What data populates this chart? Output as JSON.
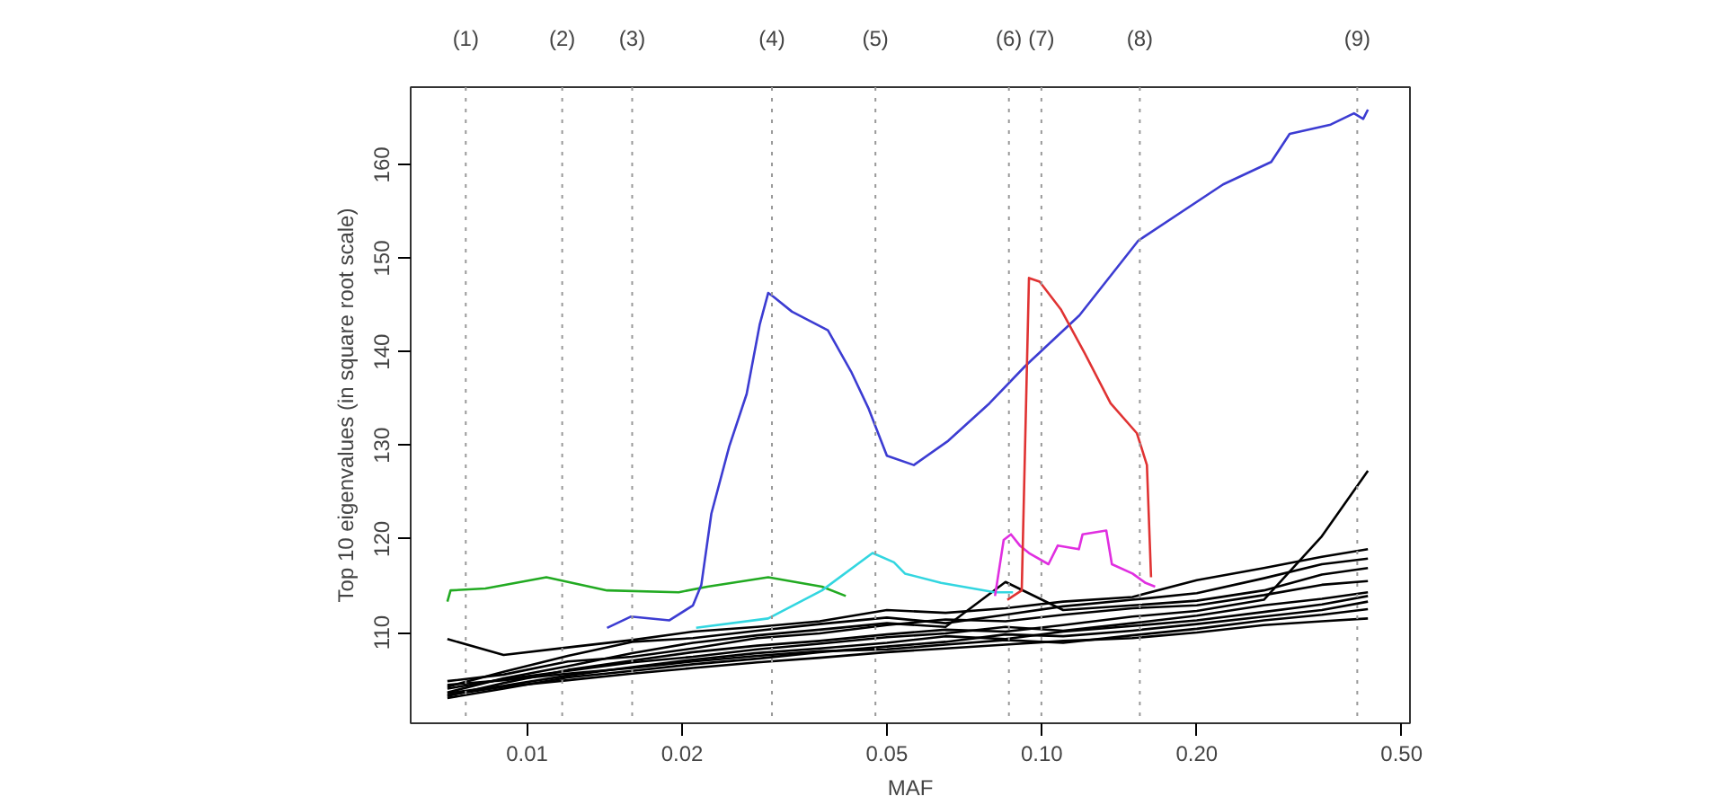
{
  "chart_data": {
    "type": "line",
    "xlabel": "MAF",
    "ylabel": "Top 10 eigenvalues (in square root scale)",
    "log": "x",
    "grid": false,
    "marker": "none",
    "line_style": "solid",
    "xlim": [
      0.00594,
      0.519
    ],
    "ylim": [
      100.3,
      168.3
    ],
    "xticks": [
      {
        "value": 0.01,
        "label": "0.01"
      },
      {
        "value": 0.02,
        "label": "0.02"
      },
      {
        "value": 0.05,
        "label": "0.05"
      },
      {
        "value": 0.1,
        "label": "0.10"
      },
      {
        "value": 0.2,
        "label": "0.20"
      },
      {
        "value": 0.5,
        "label": "0.50"
      }
    ],
    "yticks": [
      110,
      120,
      130,
      140,
      150,
      160
    ],
    "x": [
      0.007,
      0.009,
      0.012,
      0.016,
      0.021,
      0.028,
      0.037,
      0.05,
      0.065,
      0.085,
      0.11,
      0.15,
      0.2,
      0.27,
      0.35,
      0.43
    ],
    "series": [
      {
        "color": "#000000",
        "values": [
          109.3,
          107.6,
          108.4,
          109.2,
          110.1,
          110.6,
          111.2,
          112.4,
          112.1,
          112.6,
          113.3,
          113.8,
          115.6,
          116.9,
          118.1,
          118.9
        ]
      },
      {
        "color": "#000000",
        "values": [
          104.2,
          105.8,
          107.5,
          109.0,
          109.4,
          110.2,
          110.9,
          111.6,
          111.0,
          111.9,
          112.8,
          113.5,
          114.2,
          115.8,
          117.3,
          117.9
        ]
      },
      {
        "color": "#000000",
        "values": [
          103.6,
          105.1,
          106.4,
          107.8,
          108.9,
          109.7,
          110.3,
          111.0,
          110.6,
          115.4,
          112.4,
          112.9,
          113.4,
          114.5,
          116.2,
          116.9
        ]
      },
      {
        "color": "#000000",
        "values": [
          104.8,
          105.5,
          106.9,
          107.4,
          108.3,
          109.4,
          109.9,
          110.8,
          111.4,
          111.2,
          111.9,
          112.6,
          112.9,
          114.0,
          115.1,
          115.5
        ]
      },
      {
        "color": "#000000",
        "values": [
          103.2,
          104.6,
          106.0,
          107.0,
          107.9,
          108.6,
          109.1,
          109.8,
          110.3,
          110.1,
          110.8,
          111.7,
          112.3,
          113.5,
          120.3,
          127.3
        ]
      },
      {
        "color": "#000000",
        "values": [
          104.0,
          105.0,
          105.9,
          106.8,
          107.4,
          108.2,
          108.8,
          109.5,
          109.9,
          110.6,
          110.2,
          111.0,
          111.8,
          112.9,
          113.6,
          114.3
        ]
      },
      {
        "color": "#000000",
        "values": [
          103.5,
          104.3,
          105.4,
          106.3,
          107.1,
          107.8,
          108.3,
          108.9,
          109.6,
          109.3,
          110.1,
          110.7,
          111.3,
          112.2,
          113.0,
          113.9
        ]
      },
      {
        "color": "#000000",
        "values": [
          103.0,
          104.0,
          105.2,
          105.9,
          106.6,
          107.2,
          107.9,
          108.5,
          109.0,
          109.8,
          109.6,
          110.2,
          110.9,
          111.7,
          112.4,
          113.3
        ]
      },
      {
        "color": "#000000",
        "values": [
          104.4,
          104.9,
          105.6,
          106.2,
          106.9,
          107.5,
          108.0,
          108.2,
          108.7,
          109.2,
          108.9,
          109.7,
          110.4,
          111.3,
          111.9,
          112.5
        ]
      },
      {
        "color": "#000000",
        "values": [
          103.3,
          104.2,
          104.9,
          105.6,
          106.2,
          106.8,
          107.3,
          107.9,
          108.3,
          108.7,
          109.1,
          109.4,
          110.0,
          110.8,
          111.2,
          111.5
        ]
      },
      {
        "color": "#22aa22",
        "x": [
          0.007,
          0.0071,
          0.0083,
          0.0109,
          0.0143,
          0.0197,
          0.0224,
          0.0294,
          0.0374,
          0.0416
        ],
        "values": [
          113.3,
          114.5,
          114.7,
          115.9,
          114.5,
          114.3,
          114.9,
          115.9,
          114.9,
          113.9
        ]
      },
      {
        "color": "#33d6e0",
        "x": [
          0.0213,
          0.0294,
          0.0374,
          0.0469,
          0.0516,
          0.0542,
          0.0637,
          0.081,
          0.0879
        ],
        "values": [
          110.5,
          111.5,
          114.5,
          118.5,
          117.5,
          116.3,
          115.3,
          114.3,
          114.3
        ]
      },
      {
        "color": "#3c3cd2",
        "x": [
          0.0143,
          0.0159,
          0.0189,
          0.021,
          0.0218,
          0.0228,
          0.0247,
          0.0267,
          0.0283,
          0.0294,
          0.0301,
          0.0327,
          0.0384,
          0.0426,
          0.0461,
          0.05,
          0.0564,
          0.0658,
          0.0791,
          0.0929,
          0.1183,
          0.154,
          0.225,
          0.279,
          0.303,
          0.364,
          0.404,
          0.421,
          0.43
        ],
        "values": [
          110.5,
          111.7,
          111.3,
          112.9,
          115.1,
          122.7,
          129.9,
          135.5,
          142.9,
          146.3,
          145.9,
          144.3,
          142.3,
          137.9,
          133.9,
          128.9,
          127.9,
          130.5,
          134.5,
          138.5,
          143.9,
          151.9,
          157.9,
          160.3,
          163.3,
          164.3,
          165.5,
          164.9,
          165.9
        ]
      },
      {
        "color": "#e02fe0",
        "x": [
          0.0811,
          0.0843,
          0.0871,
          0.0906,
          0.0944,
          0.103,
          0.1074,
          0.118,
          0.12,
          0.1334,
          0.1368,
          0.15,
          0.159,
          0.166
        ],
        "values": [
          113.9,
          119.9,
          120.5,
          119.3,
          118.5,
          117.3,
          119.3,
          118.9,
          120.5,
          120.9,
          117.3,
          116.3,
          115.3,
          114.9
        ]
      },
      {
        "color": "#e03333",
        "x": [
          0.0857,
          0.0914,
          0.0944,
          0.099,
          0.109,
          0.121,
          0.136,
          0.153,
          0.16,
          0.163
        ],
        "values": [
          113.5,
          114.5,
          147.9,
          147.5,
          144.5,
          139.9,
          134.5,
          131.3,
          127.9,
          115.9
        ]
      }
    ],
    "ref_lines": [
      {
        "axis": "x",
        "value": 0.0076,
        "color": "#999999",
        "line_style": "dotted"
      },
      {
        "axis": "x",
        "value": 0.0117,
        "color": "#999999",
        "line_style": "dotted"
      },
      {
        "axis": "x",
        "value": 0.016,
        "color": "#999999",
        "line_style": "dotted"
      },
      {
        "axis": "x",
        "value": 0.0299,
        "color": "#999999",
        "line_style": "dotted"
      },
      {
        "axis": "x",
        "value": 0.0475,
        "color": "#999999",
        "line_style": "dotted"
      },
      {
        "axis": "x",
        "value": 0.0863,
        "color": "#999999",
        "line_style": "dotted"
      },
      {
        "axis": "x",
        "value": 0.0998,
        "color": "#999999",
        "line_style": "dotted"
      },
      {
        "axis": "x",
        "value": 0.155,
        "color": "#999999",
        "line_style": "dotted"
      },
      {
        "axis": "x",
        "value": 0.41,
        "color": "#999999",
        "line_style": "dotted"
      }
    ],
    "annotations": [
      "(1)",
      "(2)",
      "(3)",
      "(4)",
      "(5)",
      "(6)",
      "(7)",
      "(8)",
      "(9)"
    ]
  }
}
